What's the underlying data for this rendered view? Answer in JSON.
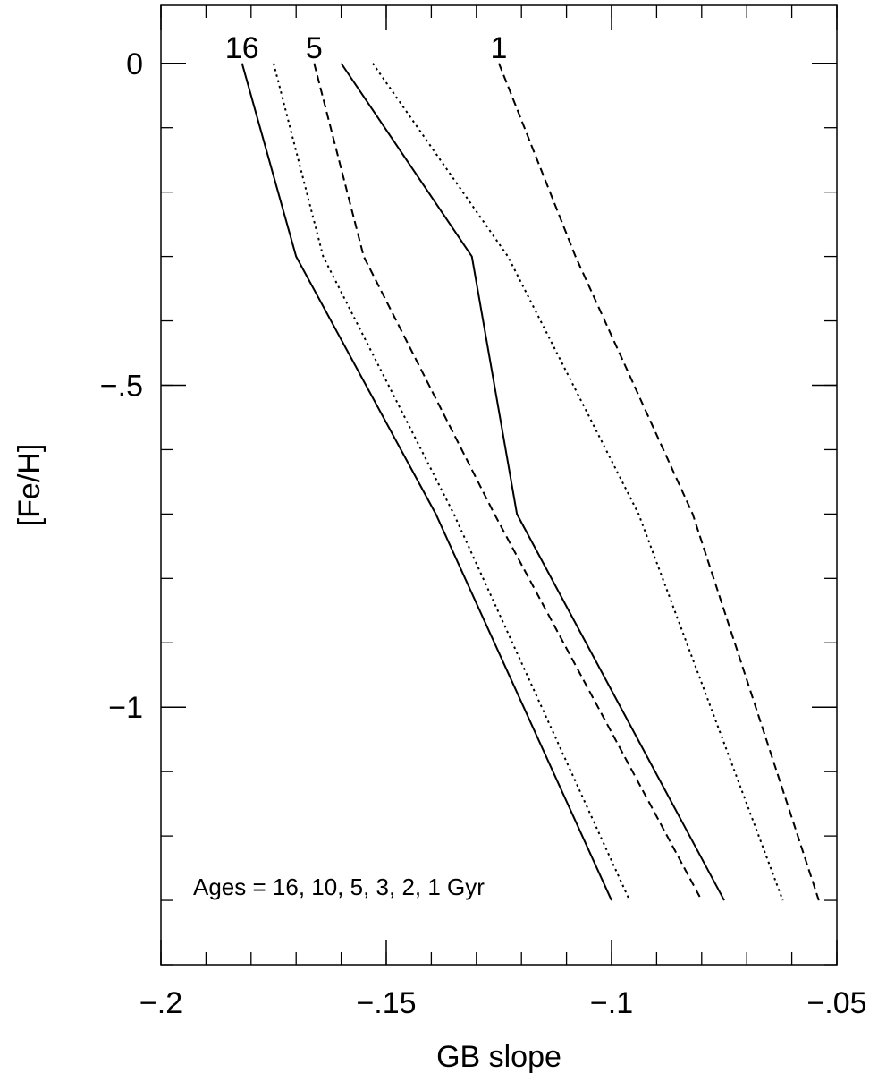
{
  "chart_data": {
    "type": "line",
    "xlabel": "GB slope",
    "ylabel": "[Fe/H]",
    "xlim": [
      -0.2,
      -0.05
    ],
    "ylim": [
      -1.4,
      0.09
    ],
    "x_ticks": [
      {
        "value": -0.2,
        "label": "−.2"
      },
      {
        "value": -0.15,
        "label": "−.15"
      },
      {
        "value": -0.1,
        "label": "−.1"
      },
      {
        "value": -0.05,
        "label": "−.05"
      }
    ],
    "y_ticks": [
      {
        "value": 0,
        "label": "0"
      },
      {
        "value": -0.5,
        "label": "−.5"
      },
      {
        "value": -1,
        "label": "−1"
      }
    ],
    "x_minor_step": 0.01,
    "y_minor_step": 0.1,
    "annotation": "Ages = 16, 10, 5, 3, 2, 1 Gyr",
    "series": [
      {
        "age": 16,
        "label": "16",
        "style": "solid",
        "points": [
          [
            -0.182,
            0.0
          ],
          [
            -0.17,
            -0.3
          ],
          [
            -0.139,
            -0.7
          ],
          [
            -0.1,
            -1.3
          ]
        ]
      },
      {
        "age": 10,
        "label": "",
        "style": "dotted",
        "points": [
          [
            -0.175,
            0.0
          ],
          [
            -0.164,
            -0.3
          ],
          [
            -0.135,
            -0.7
          ],
          [
            -0.096,
            -1.3
          ]
        ]
      },
      {
        "age": 5,
        "label": "5",
        "style": "dashed",
        "points": [
          [
            -0.166,
            0.0
          ],
          [
            -0.155,
            -0.3
          ],
          [
            -0.126,
            -0.7
          ],
          [
            -0.08,
            -1.3
          ]
        ]
      },
      {
        "age": 3,
        "label": "",
        "style": "solid",
        "points": [
          [
            -0.16,
            0.0
          ],
          [
            -0.131,
            -0.3
          ],
          [
            -0.121,
            -0.7
          ],
          [
            -0.075,
            -1.3
          ]
        ]
      },
      {
        "age": 2,
        "label": "",
        "style": "dotted",
        "points": [
          [
            -0.153,
            0.0
          ],
          [
            -0.123,
            -0.3
          ],
          [
            -0.094,
            -0.7
          ],
          [
            -0.062,
            -1.3
          ]
        ]
      },
      {
        "age": 1,
        "label": "1",
        "style": "dashed",
        "points": [
          [
            -0.125,
            0.0
          ],
          [
            -0.108,
            -0.3
          ],
          [
            -0.082,
            -0.7
          ],
          [
            -0.054,
            -1.3
          ]
        ]
      }
    ]
  }
}
